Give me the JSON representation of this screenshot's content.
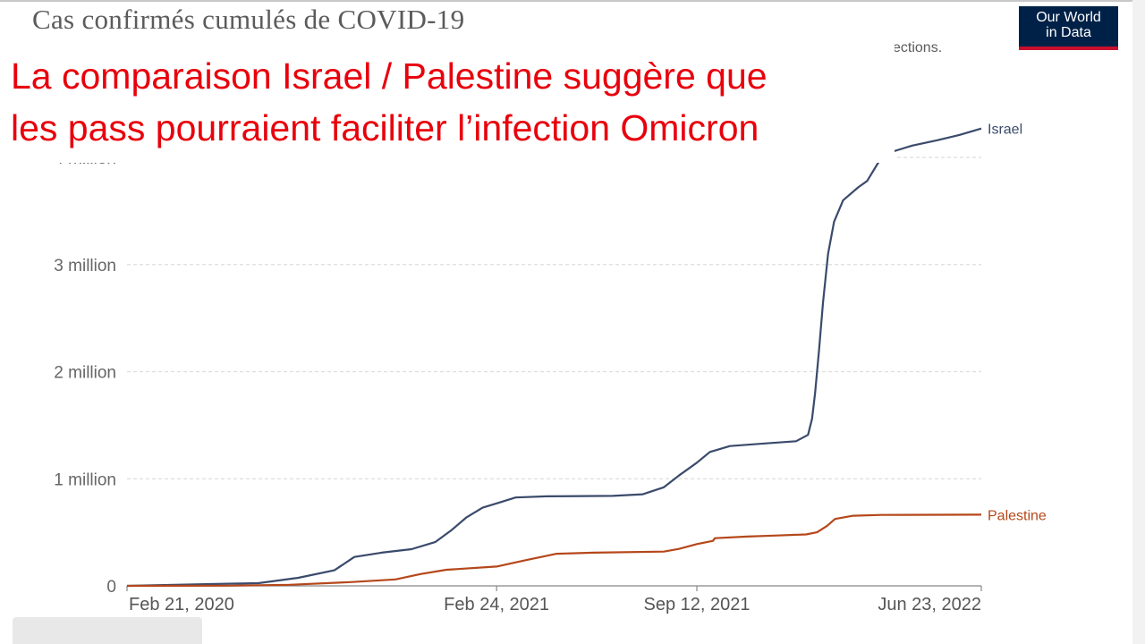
{
  "chart_data": {
    "type": "line",
    "title": "Cas confirmés cumulés de COVID-19",
    "subtitle_fragment": "ections.",
    "y_ticks": [
      {
        "value": 0,
        "label": "0"
      },
      {
        "value": 1000000,
        "label": "1 million"
      },
      {
        "value": 2000000,
        "label": "2 million"
      },
      {
        "value": 3000000,
        "label": "3 million"
      },
      {
        "value": 4000000,
        "label": "4 million"
      }
    ],
    "x_ticks": [
      {
        "date": "2020-02-21",
        "label": "Feb 21, 2020"
      },
      {
        "date": "2021-02-24",
        "label": "Feb 24, 2021"
      },
      {
        "date": "2021-09-12",
        "label": "Sep 12, 2021"
      },
      {
        "date": "2022-06-23",
        "label": "Jun 23, 2022"
      }
    ],
    "x_range": [
      "2020-02-21",
      "2022-06-23"
    ],
    "y_range": [
      0,
      4000000
    ],
    "grid": true,
    "series": [
      {
        "name": "Israel",
        "color": "#3a4a6b",
        "points": [
          [
            "2020-02-21",
            0
          ],
          [
            "2020-05-15",
            16600
          ],
          [
            "2020-07-01",
            25000
          ],
          [
            "2020-08-10",
            75000
          ],
          [
            "2020-09-15",
            145000
          ],
          [
            "2020-10-05",
            270000
          ],
          [
            "2020-11-01",
            310000
          ],
          [
            "2020-12-01",
            342000
          ],
          [
            "2020-12-25",
            410000
          ],
          [
            "2021-01-10",
            520000
          ],
          [
            "2021-01-25",
            640000
          ],
          [
            "2021-02-10",
            730000
          ],
          [
            "2021-02-24",
            770000
          ],
          [
            "2021-03-15",
            825000
          ],
          [
            "2021-04-15",
            836000
          ],
          [
            "2021-06-20",
            840000
          ],
          [
            "2021-07-20",
            855000
          ],
          [
            "2021-08-10",
            920000
          ],
          [
            "2021-08-25",
            1030000
          ],
          [
            "2021-09-12",
            1150000
          ],
          [
            "2021-09-25",
            1250000
          ],
          [
            "2021-10-15",
            1305000
          ],
          [
            "2021-11-20",
            1330000
          ],
          [
            "2021-12-20",
            1350000
          ],
          [
            "2022-01-01",
            1410000
          ],
          [
            "2022-01-05",
            1560000
          ],
          [
            "2022-01-08",
            1800000
          ],
          [
            "2022-01-12",
            2200000
          ],
          [
            "2022-01-16",
            2650000
          ],
          [
            "2022-01-21",
            3100000
          ],
          [
            "2022-01-27",
            3400000
          ],
          [
            "2022-02-05",
            3600000
          ],
          [
            "2022-02-20",
            3720000
          ],
          [
            "2022-03-01",
            3780000
          ],
          [
            "2022-03-12",
            3950000
          ],
          [
            "2022-03-25",
            4050000
          ],
          [
            "2022-04-15",
            4110000
          ],
          [
            "2022-05-10",
            4160000
          ],
          [
            "2022-06-01",
            4210000
          ],
          [
            "2022-06-23",
            4270000
          ]
        ]
      },
      {
        "name": "Palestine",
        "color": "#b5471a",
        "points": [
          [
            "2020-02-21",
            0
          ],
          [
            "2020-06-01",
            1500
          ],
          [
            "2020-08-01",
            10000
          ],
          [
            "2020-10-01",
            35000
          ],
          [
            "2020-11-15",
            60000
          ],
          [
            "2020-12-10",
            110000
          ],
          [
            "2021-01-05",
            150000
          ],
          [
            "2021-02-24",
            180000
          ],
          [
            "2021-03-25",
            240000
          ],
          [
            "2021-04-25",
            300000
          ],
          [
            "2021-06-01",
            310000
          ],
          [
            "2021-08-10",
            320000
          ],
          [
            "2021-08-25",
            345000
          ],
          [
            "2021-09-12",
            390000
          ],
          [
            "2021-09-28",
            420000
          ],
          [
            "2021-09-30",
            445000
          ],
          [
            "2021-11-01",
            460000
          ],
          [
            "2021-12-01",
            470000
          ],
          [
            "2021-12-30",
            480000
          ],
          [
            "2022-01-10",
            500000
          ],
          [
            "2022-01-20",
            560000
          ],
          [
            "2022-01-28",
            625000
          ],
          [
            "2022-02-15",
            655000
          ],
          [
            "2022-03-15",
            662000
          ],
          [
            "2022-06-23",
            665000
          ]
        ]
      }
    ]
  },
  "logo": {
    "line1": "Our World",
    "line2": "in Data"
  },
  "overlay": {
    "line1": "La comparaison Israel / Palestine suggère que",
    "line2": "les pass pourraient faciliter l’infection Omicron",
    "color": "#e8000c"
  }
}
